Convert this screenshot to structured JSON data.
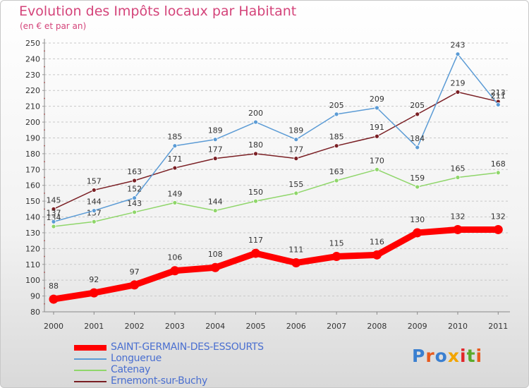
{
  "header": {
    "title": "Evolution des Impôts locaux par Habitant",
    "subtitle": "(en € et par an)"
  },
  "logo": {
    "text": "Proxiti",
    "colors": [
      "#3a7fd0",
      "#e85a1e",
      "#3a7fd0",
      "#f2a400",
      "#e2262a",
      "#5aaa2a",
      "#e85a1e"
    ]
  },
  "chart_data": {
    "type": "line",
    "x": [
      "2000",
      "2001",
      "2002",
      "2003",
      "2004",
      "2005",
      "2006",
      "2007",
      "2008",
      "2009",
      "2010",
      "2011"
    ],
    "ylim": [
      80,
      250
    ],
    "yticks": [
      80,
      90,
      100,
      110,
      120,
      130,
      140,
      150,
      160,
      170,
      180,
      190,
      200,
      210,
      220,
      230,
      240,
      250
    ],
    "grid": "horizontal dashed",
    "legend": "bottom-left",
    "series": [
      {
        "name": "Ernemont-sur-Buchy",
        "color": "#7a1f24",
        "values": [
          145,
          157,
          163,
          171,
          177,
          180,
          177,
          185,
          191,
          205,
          219,
          213
        ]
      },
      {
        "name": "Catenay",
        "color": "#8fd66a",
        "values": [
          134,
          137,
          143,
          149,
          144,
          150,
          155,
          163,
          170,
          159,
          165,
          168
        ]
      },
      {
        "name": "Longuerue",
        "color": "#5b9bd5",
        "values": [
          137,
          144,
          152,
          185,
          189,
          200,
          189,
          205,
          209,
          184,
          243,
          211
        ]
      },
      {
        "name": "SAINT-GERMAIN-DES-ESSOURTS",
        "color": "#ff0000",
        "values": [
          88,
          92,
          97,
          106,
          108,
          117,
          111,
          115,
          116,
          130,
          132,
          132
        ]
      }
    ]
  }
}
